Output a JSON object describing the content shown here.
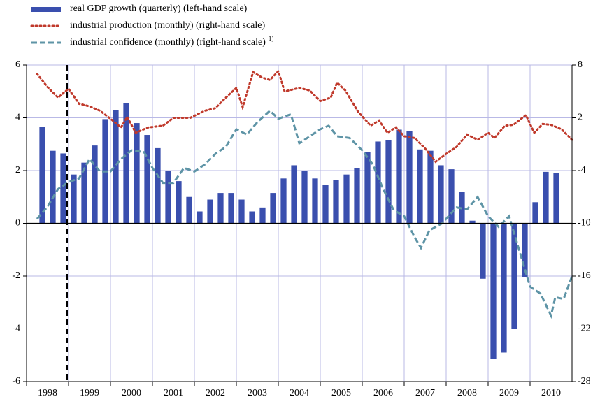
{
  "chart_data": {
    "type": "bar",
    "xlim": [
      1998,
      2011
    ],
    "xticks": [
      1998,
      1999,
      2000,
      2001,
      2002,
      2003,
      2004,
      2005,
      2006,
      2007,
      2008,
      2009,
      2010
    ],
    "ylim": [
      -6,
      6
    ],
    "yticks": [
      -6,
      -4,
      -2,
      0,
      2,
      4,
      6
    ],
    "y2lim": [
      -28,
      8
    ],
    "y2ticks": [
      -28,
      -22,
      -16,
      -10,
      -4,
      2,
      8
    ],
    "grid": true,
    "legend": "top-left",
    "series": [
      {
        "name": "real GDP growth (quarterly) (left-hand scale)",
        "type": "bar",
        "color": "#3a4fae",
        "x": [
          1998.375,
          1998.625,
          1998.875,
          1999.125,
          1999.375,
          1999.625,
          1999.875,
          2000.125,
          2000.375,
          2000.625,
          2000.875,
          2001.125,
          2001.375,
          2001.625,
          2001.875,
          2002.125,
          2002.375,
          2002.625,
          2002.875,
          2003.125,
          2003.375,
          2003.625,
          2003.875,
          2004.125,
          2004.375,
          2004.625,
          2004.875,
          2005.125,
          2005.375,
          2005.625,
          2005.875,
          2006.125,
          2006.375,
          2006.625,
          2006.875,
          2007.125,
          2007.375,
          2007.625,
          2007.875,
          2008.125,
          2008.375,
          2008.625,
          2008.875,
          2009.125,
          2009.375,
          2009.625,
          2009.875,
          2010.125,
          2010.375,
          2010.625
        ],
        "values": [
          3.65,
          2.75,
          2.65,
          1.85,
          2.3,
          2.95,
          3.95,
          4.3,
          4.55,
          3.8,
          3.35,
          2.85,
          2.0,
          1.6,
          1.0,
          0.45,
          0.9,
          1.15,
          1.15,
          0.9,
          0.45,
          0.6,
          1.15,
          1.7,
          2.2,
          2.0,
          1.7,
          1.45,
          1.65,
          1.85,
          2.1,
          2.7,
          3.1,
          3.15,
          3.55,
          3.5,
          2.8,
          2.75,
          2.2,
          2.05,
          1.2,
          0.1,
          -2.1,
          -5.15,
          -4.9,
          -4.0,
          -2.05,
          0.8,
          1.95,
          1.9
        ]
      },
      {
        "name": "industrial production (monthly) (right-hand scale)",
        "type": "line",
        "style": "dotted",
        "axis": "y2",
        "color": "#c0392b",
        "x": [
          1998.25,
          1998.5,
          1998.75,
          1999.0,
          1999.25,
          1999.5,
          1999.75,
          2000.0,
          2000.25,
          2000.4,
          2000.6,
          2000.9,
          2001.25,
          2001.5,
          2001.9,
          2002.25,
          2002.5,
          2002.75,
          2003.0,
          2003.15,
          2003.4,
          2003.6,
          2003.8,
          2004.0,
          2004.15,
          2004.5,
          2004.75,
          2005.0,
          2005.25,
          2005.4,
          2005.6,
          2005.9,
          2006.2,
          2006.4,
          2006.6,
          2006.8,
          2007.0,
          2007.25,
          2007.5,
          2007.75,
          2008.0,
          2008.25,
          2008.5,
          2008.75,
          2009.0,
          2009.15,
          2009.4,
          2009.6,
          2009.9,
          2010.1,
          2010.3,
          2010.5,
          2010.75,
          2011.0
        ],
        "values": [
          7.0,
          5.5,
          4.3,
          5.3,
          3.6,
          3.3,
          2.8,
          1.9,
          0.9,
          2.1,
          0.3,
          0.9,
          1.1,
          2.0,
          2.0,
          2.8,
          3.1,
          4.3,
          5.4,
          3.2,
          7.2,
          6.6,
          6.3,
          7.3,
          5.0,
          5.4,
          5.1,
          3.9,
          4.3,
          6.0,
          5.1,
          2.7,
          1.1,
          1.7,
          0.3,
          0.9,
          -0.1,
          -0.3,
          -1.5,
          -3.0,
          -2.1,
          -1.3,
          0.1,
          -0.5,
          0.3,
          -0.3,
          1.1,
          1.2,
          2.3,
          0.3,
          1.3,
          1.2,
          0.7,
          -0.5
        ]
      },
      {
        "name": "industrial confidence (monthly) (right-hand scale)",
        "footnote": "1)",
        "type": "line",
        "style": "dashed",
        "axis": "y2",
        "color": "#5e94a6",
        "x": [
          1998.25,
          1998.5,
          1998.75,
          1999.0,
          1999.25,
          1999.5,
          1999.75,
          2000.0,
          2000.25,
          2000.5,
          2000.8,
          2001.0,
          2001.25,
          2001.5,
          2001.75,
          2002.0,
          2002.25,
          2002.5,
          2002.75,
          2003.0,
          2003.25,
          2003.5,
          2003.8,
          2004.0,
          2004.3,
          2004.5,
          2004.75,
          2005.0,
          2005.2,
          2005.4,
          2005.7,
          2006.0,
          2006.25,
          2006.5,
          2006.75,
          2007.0,
          2007.25,
          2007.4,
          2007.6,
          2007.9,
          2008.25,
          2008.5,
          2008.75,
          2009.0,
          2009.25,
          2009.5,
          2009.75,
          2010.0,
          2010.25,
          2010.5,
          2010.6,
          2010.8,
          2011.0
        ],
        "values": [
          -9.5,
          -8.1,
          -6.1,
          -5.3,
          -4.9,
          -2.7,
          -4.1,
          -4.1,
          -2.7,
          -1.7,
          -1.9,
          -3.7,
          -5.4,
          -5.4,
          -3.7,
          -4.1,
          -3.3,
          -2.1,
          -1.3,
          0.7,
          0.1,
          1.5,
          2.8,
          1.9,
          2.4,
          -0.9,
          -0.1,
          0.7,
          1.1,
          -0.1,
          -0.3,
          -1.7,
          -3.3,
          -6.1,
          -8.5,
          -9.2,
          -11.6,
          -12.8,
          -10.8,
          -10.0,
          -8.2,
          -8.4,
          -7.0,
          -9.2,
          -10.4,
          -9.2,
          -13.2,
          -17.2,
          -18.0,
          -20.5,
          -18.4,
          -18.6,
          -16.0
        ]
      }
    ]
  }
}
